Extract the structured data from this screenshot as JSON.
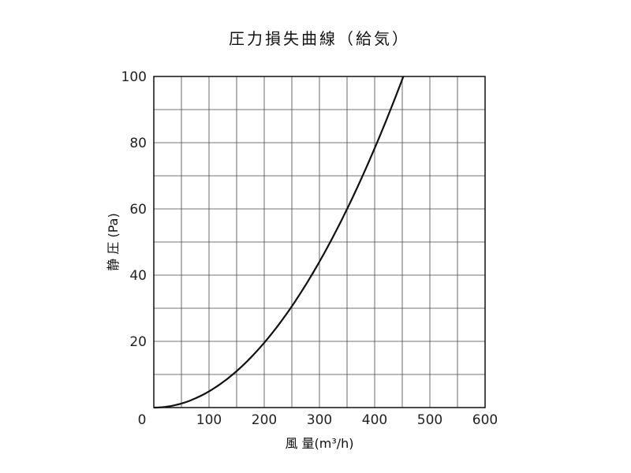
{
  "chart_data": {
    "type": "line",
    "title": "圧力損失曲線（給気）",
    "xlabel": "風 量(m³/h)",
    "ylabel": "静 圧 (Pa)",
    "xlim": [
      0,
      600
    ],
    "ylim": [
      0,
      100
    ],
    "x_ticks": [
      "0",
      "100",
      "200",
      "300",
      "400",
      "500",
      "600"
    ],
    "y_ticks": [
      "20",
      "40",
      "60",
      "80",
      "100"
    ],
    "grid": true,
    "x_grid_step": 50,
    "y_grid_step": 10,
    "series": [
      {
        "color": "#111111",
        "points": [
          [
            0,
            0
          ],
          [
            50,
            1.2
          ],
          [
            100,
            4.9
          ],
          [
            150,
            11
          ],
          [
            200,
            19.6
          ],
          [
            250,
            30.6
          ],
          [
            300,
            44
          ],
          [
            350,
            60
          ],
          [
            400,
            78.3
          ],
          [
            452,
            100
          ]
        ]
      }
    ]
  }
}
